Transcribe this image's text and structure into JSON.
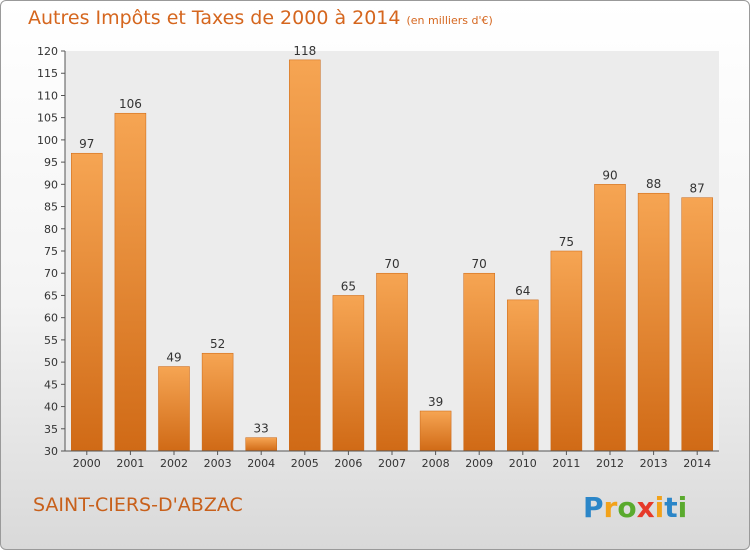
{
  "chart_data": {
    "type": "bar",
    "title": "Autres Impôts et Taxes de 2000 à 2014",
    "subtitle": "(en milliers d'€)",
    "xlabel": "",
    "ylabel": "",
    "categories": [
      "2000",
      "2001",
      "2002",
      "2003",
      "2004",
      "2005",
      "2006",
      "2007",
      "2008",
      "2009",
      "2010",
      "2011",
      "2012",
      "2013",
      "2014"
    ],
    "values": [
      97,
      106,
      49,
      52,
      33,
      118,
      65,
      70,
      39,
      70,
      64,
      75,
      90,
      88,
      87
    ],
    "ylim": [
      30,
      120
    ],
    "ytick_step": 5,
    "grid": false,
    "bar_color": "#e8832e"
  },
  "city_name": "SAINT-CIERS-D'ABZAC",
  "logo_icon": "proxiti-logo",
  "logo_text": "Proxiti"
}
